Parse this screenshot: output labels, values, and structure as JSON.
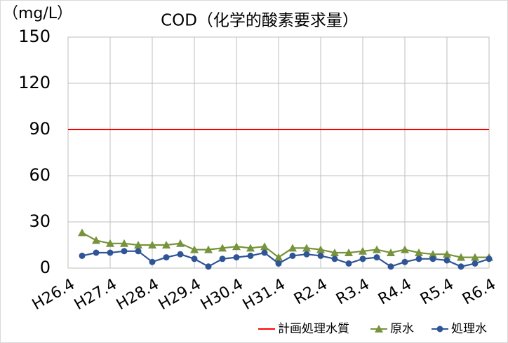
{
  "chart_data": {
    "type": "line",
    "title": "COD（化学的酸素要求量）",
    "y_label": "（mg/L）",
    "categories": [
      "H26.4",
      null,
      null,
      "H27.4",
      null,
      null,
      "H28.4",
      null,
      null,
      "H29.4",
      null,
      null,
      "H30.4",
      null,
      null,
      "H31.4",
      null,
      null,
      "R2.4",
      null,
      null,
      "R3.4",
      null,
      null,
      "R4.4",
      null,
      null,
      "R5.4",
      null,
      null,
      "R6.4"
    ],
    "series": [
      {
        "name": "計画処理水質",
        "color": "#ff0000",
        "marker": "none",
        "values": [
          90,
          90,
          90,
          90,
          90,
          90,
          90,
          90,
          90,
          90,
          90,
          90,
          90,
          90,
          90,
          90,
          90,
          90,
          90,
          90,
          90,
          90,
          90,
          90,
          90,
          90,
          90,
          90,
          90,
          90,
          90
        ]
      },
      {
        "name": "原水",
        "color": "#77933c",
        "marker": "triangle",
        "values": [
          null,
          23,
          18,
          16,
          16,
          15,
          15,
          15,
          16,
          12,
          12,
          13,
          14,
          13,
          14,
          7,
          13,
          13,
          12,
          10,
          10,
          11,
          12,
          10,
          12,
          10,
          9,
          9,
          7,
          7,
          7
        ]
      },
      {
        "name": "処理水",
        "color": "#2f5597",
        "marker": "circle",
        "values": [
          null,
          8,
          10,
          10,
          11,
          11,
          4,
          7,
          9,
          6,
          1,
          6,
          7,
          8,
          10,
          3,
          8,
          9,
          8,
          6,
          3,
          6,
          7,
          1,
          4,
          6,
          6,
          5,
          1,
          3,
          6
        ]
      }
    ],
    "ylim": [
      0,
      150
    ],
    "yticks": [
      0,
      30,
      60,
      90,
      120,
      150
    ],
    "grid": true,
    "legend": "bottom-right"
  }
}
